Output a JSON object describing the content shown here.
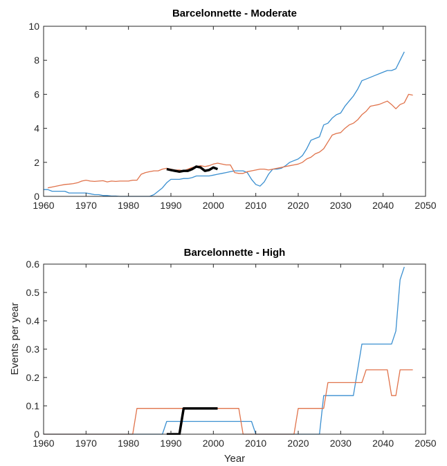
{
  "chart_data": [
    {
      "type": "line",
      "title": "Barcelonnette - Moderate",
      "xlabel": "",
      "ylabel": "",
      "xlim": [
        1960,
        2050
      ],
      "ylim": [
        0,
        10
      ],
      "xticks": [
        1960,
        1970,
        1980,
        1990,
        2000,
        2010,
        2020,
        2030,
        2040,
        2050
      ],
      "yticks": [
        0,
        2,
        4,
        6,
        8,
        10
      ],
      "grid": false,
      "legend": "none",
      "series": [
        {
          "color": "#3a8fd0",
          "width": 1.3,
          "points": [
            [
              1960,
              0.4
            ],
            [
              1961,
              0.4
            ],
            [
              1962,
              0.3
            ],
            [
              1963,
              0.3
            ],
            [
              1964,
              0.3
            ],
            [
              1965,
              0.3
            ],
            [
              1966,
              0.2
            ],
            [
              1967,
              0.2
            ],
            [
              1968,
              0.2
            ],
            [
              1969,
              0.2
            ],
            [
              1970,
              0.2
            ],
            [
              1971,
              0.15
            ],
            [
              1972,
              0.1
            ],
            [
              1973,
              0.1
            ],
            [
              1974,
              0.05
            ],
            [
              1975,
              0.05
            ],
            [
              1976,
              0.02
            ],
            [
              1977,
              0.02
            ],
            [
              1978,
              0.0
            ],
            [
              1979,
              0.0
            ],
            [
              1980,
              0.0
            ],
            [
              1981,
              0.0
            ],
            [
              1982,
              0.0
            ],
            [
              1983,
              0.0
            ],
            [
              1984,
              0.0
            ],
            [
              1985,
              0.0
            ],
            [
              1986,
              0.1
            ],
            [
              1987,
              0.3
            ],
            [
              1988,
              0.5
            ],
            [
              1989,
              0.8
            ],
            [
              1990,
              1.0
            ],
            [
              1991,
              1.0
            ],
            [
              1992,
              1.0
            ],
            [
              1993,
              1.05
            ],
            [
              1994,
              1.05
            ],
            [
              1995,
              1.1
            ],
            [
              1996,
              1.2
            ],
            [
              1997,
              1.2
            ],
            [
              1998,
              1.2
            ],
            [
              1999,
              1.2
            ],
            [
              2000,
              1.25
            ],
            [
              2001,
              1.3
            ],
            [
              2002,
              1.35
            ],
            [
              2003,
              1.4
            ],
            [
              2004,
              1.45
            ],
            [
              2005,
              1.5
            ],
            [
              2006,
              1.5
            ],
            [
              2007,
              1.5
            ],
            [
              2008,
              1.4
            ],
            [
              2009,
              1.0
            ],
            [
              2010,
              0.7
            ],
            [
              2011,
              0.6
            ],
            [
              2012,
              0.85
            ],
            [
              2013,
              1.3
            ],
            [
              2014,
              1.6
            ],
            [
              2015,
              1.6
            ],
            [
              2016,
              1.65
            ],
            [
              2017,
              1.8
            ],
            [
              2018,
              2.0
            ],
            [
              2019,
              2.1
            ],
            [
              2020,
              2.2
            ],
            [
              2021,
              2.4
            ],
            [
              2022,
              2.8
            ],
            [
              2023,
              3.3
            ],
            [
              2024,
              3.4
            ],
            [
              2025,
              3.5
            ],
            [
              2026,
              4.2
            ],
            [
              2027,
              4.3
            ],
            [
              2028,
              4.6
            ],
            [
              2029,
              4.8
            ],
            [
              2030,
              4.9
            ],
            [
              2031,
              5.3
            ],
            [
              2032,
              5.6
            ],
            [
              2033,
              5.9
            ],
            [
              2034,
              6.3
            ],
            [
              2035,
              6.8
            ],
            [
              2036,
              6.9
            ],
            [
              2037,
              7.0
            ],
            [
              2038,
              7.1
            ],
            [
              2039,
              7.2
            ],
            [
              2040,
              7.3
            ],
            [
              2041,
              7.4
            ],
            [
              2042,
              7.4
            ],
            [
              2043,
              7.5
            ],
            [
              2044,
              8.0
            ],
            [
              2045,
              8.5
            ]
          ]
        },
        {
          "color": "#e0724a",
          "width": 1.3,
          "points": [
            [
              1961,
              0.5
            ],
            [
              1962,
              0.55
            ],
            [
              1963,
              0.6
            ],
            [
              1964,
              0.65
            ],
            [
              1965,
              0.7
            ],
            [
              1966,
              0.72
            ],
            [
              1967,
              0.75
            ],
            [
              1968,
              0.8
            ],
            [
              1969,
              0.9
            ],
            [
              1970,
              0.95
            ],
            [
              1971,
              0.9
            ],
            [
              1972,
              0.88
            ],
            [
              1973,
              0.9
            ],
            [
              1974,
              0.92
            ],
            [
              1975,
              0.85
            ],
            [
              1976,
              0.9
            ],
            [
              1977,
              0.88
            ],
            [
              1978,
              0.9
            ],
            [
              1979,
              0.9
            ],
            [
              1980,
              0.9
            ],
            [
              1981,
              0.95
            ],
            [
              1982,
              0.95
            ],
            [
              1983,
              1.3
            ],
            [
              1984,
              1.4
            ],
            [
              1985,
              1.45
            ],
            [
              1986,
              1.5
            ],
            [
              1987,
              1.5
            ],
            [
              1988,
              1.6
            ],
            [
              1989,
              1.65
            ],
            [
              1990,
              1.6
            ],
            [
              1991,
              1.55
            ],
            [
              1992,
              1.55
            ],
            [
              1993,
              1.5
            ],
            [
              1994,
              1.6
            ],
            [
              1995,
              1.7
            ],
            [
              1996,
              1.75
            ],
            [
              1997,
              1.8
            ],
            [
              1998,
              1.75
            ],
            [
              1999,
              1.8
            ],
            [
              2000,
              1.9
            ],
            [
              2001,
              1.95
            ],
            [
              2002,
              1.9
            ],
            [
              2003,
              1.85
            ],
            [
              2004,
              1.85
            ],
            [
              2005,
              1.4
            ],
            [
              2006,
              1.35
            ],
            [
              2007,
              1.35
            ],
            [
              2008,
              1.45
            ],
            [
              2009,
              1.5
            ],
            [
              2010,
              1.55
            ],
            [
              2011,
              1.6
            ],
            [
              2012,
              1.6
            ],
            [
              2013,
              1.55
            ],
            [
              2014,
              1.6
            ],
            [
              2015,
              1.65
            ],
            [
              2016,
              1.7
            ],
            [
              2017,
              1.75
            ],
            [
              2018,
              1.8
            ],
            [
              2019,
              1.85
            ],
            [
              2020,
              1.9
            ],
            [
              2021,
              2.0
            ],
            [
              2022,
              2.2
            ],
            [
              2023,
              2.3
            ],
            [
              2024,
              2.5
            ],
            [
              2025,
              2.6
            ],
            [
              2026,
              2.8
            ],
            [
              2027,
              3.2
            ],
            [
              2028,
              3.6
            ],
            [
              2029,
              3.7
            ],
            [
              2030,
              3.75
            ],
            [
              2031,
              4.0
            ],
            [
              2032,
              4.2
            ],
            [
              2033,
              4.3
            ],
            [
              2034,
              4.5
            ],
            [
              2035,
              4.8
            ],
            [
              2036,
              5.0
            ],
            [
              2037,
              5.3
            ],
            [
              2038,
              5.35
            ],
            [
              2039,
              5.4
            ],
            [
              2040,
              5.5
            ],
            [
              2041,
              5.6
            ],
            [
              2042,
              5.4
            ],
            [
              2043,
              5.15
            ],
            [
              2044,
              5.4
            ],
            [
              2045,
              5.5
            ],
            [
              2046,
              6.0
            ],
            [
              2047,
              5.95
            ]
          ]
        },
        {
          "color": "#000000",
          "width": 3.5,
          "points": [
            [
              1989,
              1.6
            ],
            [
              1990,
              1.55
            ],
            [
              1991,
              1.5
            ],
            [
              1992,
              1.45
            ],
            [
              1993,
              1.5
            ],
            [
              1994,
              1.5
            ],
            [
              1995,
              1.6
            ],
            [
              1996,
              1.75
            ],
            [
              1997,
              1.7
            ],
            [
              1998,
              1.5
            ],
            [
              1999,
              1.55
            ],
            [
              2000,
              1.7
            ],
            [
              2001,
              1.6
            ]
          ]
        }
      ]
    },
    {
      "type": "line",
      "title": "Barcelonnette - High",
      "xlabel": "Year",
      "ylabel": "Events per year",
      "xlim": [
        1960,
        2050
      ],
      "ylim": [
        0,
        0.6
      ],
      "xticks": [
        1960,
        1970,
        1980,
        1990,
        2000,
        2010,
        2020,
        2030,
        2040,
        2050
      ],
      "yticks": [
        0,
        0.1,
        0.2,
        0.3,
        0.4,
        0.5,
        0.6
      ],
      "grid": false,
      "legend": "none",
      "series": [
        {
          "color": "#3a8fd0",
          "width": 1.3,
          "points": [
            [
              1960,
              0
            ],
            [
              1988,
              0
            ],
            [
              1989,
              0.045
            ],
            [
              2009,
              0.045
            ],
            [
              2010,
              0
            ],
            [
              2025,
              0
            ],
            [
              2026,
              0.136
            ],
            [
              2033,
              0.136
            ],
            [
              2035,
              0.318
            ],
            [
              2042,
              0.318
            ],
            [
              2043,
              0.364
            ],
            [
              2044,
              0.545
            ],
            [
              2045,
              0.59
            ]
          ]
        },
        {
          "color": "#e0724a",
          "width": 1.3,
          "points": [
            [
              1960,
              0
            ],
            [
              1981,
              0
            ],
            [
              1982,
              0.091
            ],
            [
              2006,
              0.091
            ],
            [
              2007,
              0
            ],
            [
              2019,
              0
            ],
            [
              2020,
              0.091
            ],
            [
              2026,
              0.091
            ],
            [
              2027,
              0.182
            ],
            [
              2035,
              0.182
            ],
            [
              2036,
              0.227
            ],
            [
              2041,
              0.227
            ],
            [
              2042,
              0.136
            ],
            [
              2043,
              0.136
            ],
            [
              2044,
              0.227
            ],
            [
              2047,
              0.227
            ]
          ]
        },
        {
          "color": "#000000",
          "width": 3.5,
          "points": [
            [
              1989,
              0
            ],
            [
              1992,
              0
            ],
            [
              1993,
              0.091
            ],
            [
              2001,
              0.091
            ]
          ]
        }
      ]
    }
  ]
}
